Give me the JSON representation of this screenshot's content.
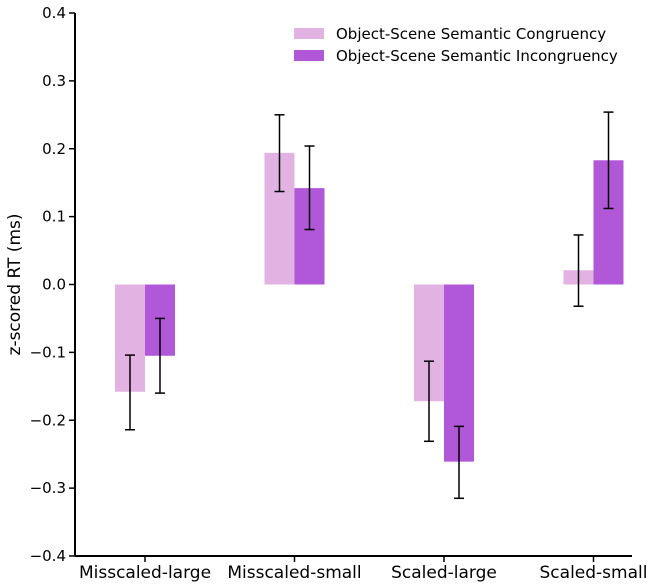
{
  "chart_data": {
    "type": "bar",
    "title": "",
    "xlabel": "",
    "ylabel": "z-scored RT (ms)",
    "ylim": [
      -0.4,
      0.4
    ],
    "yticks": [
      -0.4,
      -0.3,
      -0.2,
      -0.1,
      0.0,
      0.1,
      0.2,
      0.3,
      0.4
    ],
    "ytick_labels": [
      "−0.4",
      "−0.3",
      "−0.2",
      "−0.1",
      "0.0",
      "0.1",
      "0.2",
      "0.3",
      "0.4"
    ],
    "categories": [
      "Misscaled-large",
      "Misscaled-small",
      "Scaled-large",
      "Scaled-small"
    ],
    "series": [
      {
        "name": "Object-Scene Semantic Congruency",
        "color": "#e2b3e2",
        "values": [
          -0.158,
          0.194,
          -0.172,
          0.021
        ],
        "error_low": [
          -0.214,
          0.137,
          -0.231,
          -0.032
        ],
        "error_high": [
          -0.104,
          0.25,
          -0.113,
          0.073
        ]
      },
      {
        "name": "Object-Scene Semantic Incongruency",
        "color": "#b058d8",
        "values": [
          -0.105,
          0.142,
          -0.261,
          0.183
        ],
        "error_low": [
          -0.16,
          0.081,
          -0.315,
          0.112
        ],
        "error_high": [
          -0.05,
          0.204,
          -0.209,
          0.254
        ]
      }
    ],
    "grid": false,
    "legend_position": "top-right"
  }
}
